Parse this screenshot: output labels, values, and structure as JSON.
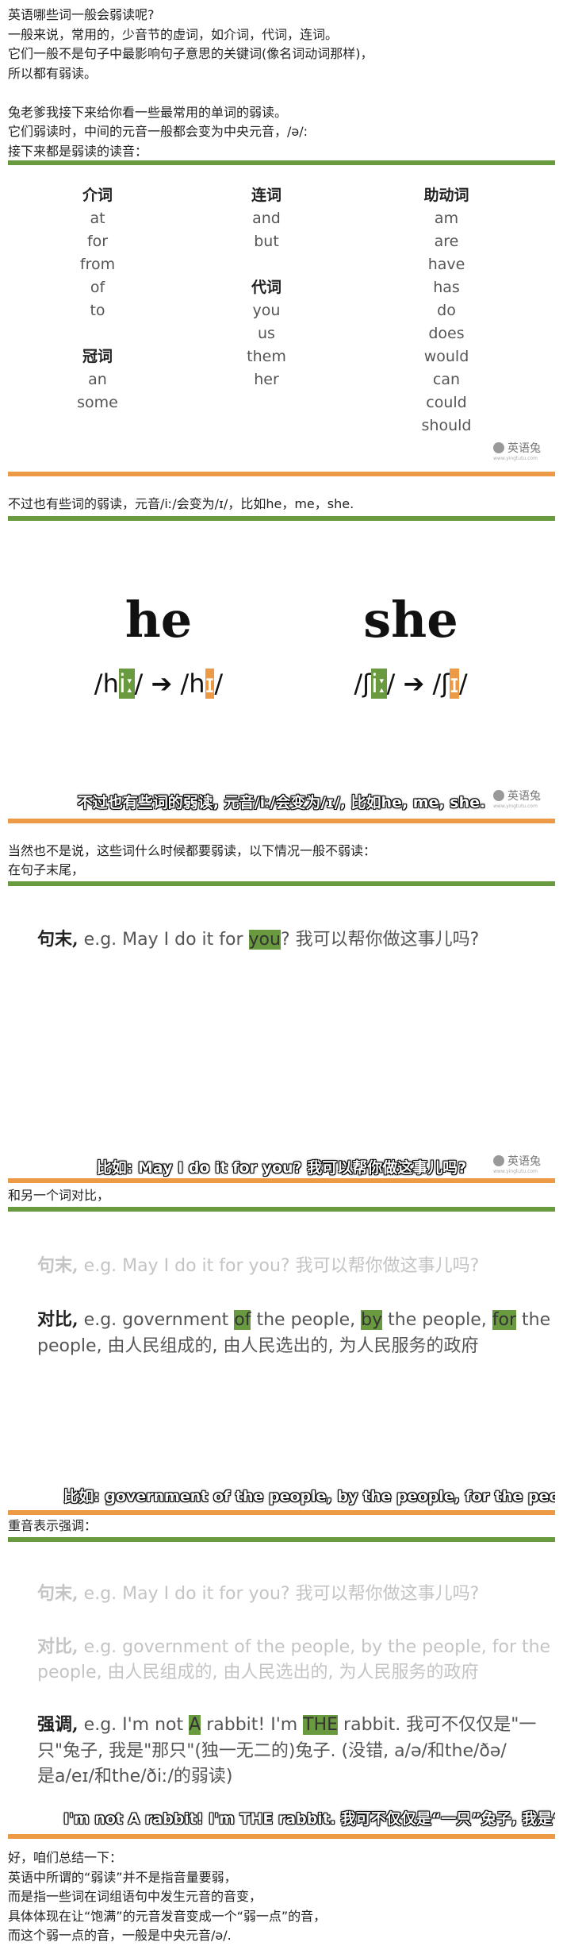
{
  "intro": [
    "英语哪些词一般会弱读呢?",
    "一般来说，常用的，少音节的虚词，如介词，代词，连词。",
    "它们一般不是句子中最影响句子意思的关键词(像名词动词那样)，",
    "所以都有弱读。",
    "兔老爹我接下来给你看一些最常用的单词的弱读。",
    "它们弱读时，中间的元音一般都会变为中央元音，/ə/:",
    "接下来都是弱读的读音："
  ],
  "logo": "英语兔",
  "logo_url": "www.yingtutu.com",
  "panel1": {
    "columns": [
      [
        {
          "heading": "介词",
          "words": [
            "at",
            "for",
            "from",
            "of",
            "to"
          ]
        },
        {
          "heading": "冠词",
          "words": [
            "an",
            "some"
          ]
        }
      ],
      [
        {
          "heading": "连词",
          "words": [
            "and",
            "but"
          ]
        },
        {
          "heading": "代词",
          "words": [
            "you",
            "us",
            "them",
            "her"
          ]
        }
      ],
      [
        {
          "heading": "助动词",
          "words": [
            "am",
            "are",
            "have",
            "has",
            "do",
            "does",
            "would",
            "can",
            "could",
            "should"
          ]
        }
      ]
    ]
  },
  "text2": "不过也有些词的弱读，元音/iː/会变为/ɪ/，比如he，me，she.",
  "panel2": {
    "words": [
      {
        "word": "he",
        "phonetic": [
          "/h",
          {
            "text": "iː",
            "style": "green"
          },
          "/ ➔ /h",
          {
            "text": "ɪ",
            "style": "orange"
          },
          "/"
        ]
      },
      {
        "word": "she",
        "phonetic": [
          "/ʃ",
          {
            "text": "iː",
            "style": "green"
          },
          "/ ➔ /ʃ",
          {
            "text": "ɪ",
            "style": "orange"
          },
          "/"
        ]
      }
    ],
    "subtitle": "不过也有些词的弱读, 元音/iː/会变为/ɪ/, 比如he, me, she."
  },
  "text3": [
    "当然也不是说，这些词什么时候都要弱读，以下情况一般不弱读：",
    "在句子末尾，"
  ],
  "panel3": {
    "lines": [
      [
        {
          "text": "句末,",
          "style": "label"
        },
        " e.g. May I do it for ",
        {
          "text": "you",
          "style": "green"
        },
        "? 我可以帮你做这事儿吗?"
      ]
    ],
    "subtitle": "比如: May I do it for you? 我可以帮你做这事儿吗?"
  },
  "text4": "和另一个词对比，",
  "panel4": {
    "faded": [
      [
        {
          "text": "句末,",
          "style": "label"
        },
        " e.g. May I do it for you? 我可以帮你做这事儿吗?"
      ]
    ],
    "lines": [
      [
        {
          "text": "对比,",
          "style": "label"
        },
        " e.g. government ",
        {
          "text": "of",
          "style": "green"
        },
        " the people, ",
        {
          "text": "by",
          "style": "green"
        },
        " the people, ",
        {
          "text": "for",
          "style": "green"
        },
        " the"
      ],
      [
        "people, 由人民组成的, 由人民选出的, 为人民服务的政府"
      ]
    ],
    "subtitle": "比如: government of the people, by the people, for the people, 由人民"
  },
  "text5": "重音表示强调：",
  "panel5": {
    "faded": [
      [
        {
          "text": "句末,",
          "style": "label"
        },
        " e.g. May I do it for you? 我可以帮你做这事儿吗?"
      ],
      [
        {
          "text": "对比,",
          "style": "label"
        },
        " e.g. government of the people, by the people, for the"
      ],
      [
        "people, 由人民组成的, 由人民选出的, 为人民服务的政府"
      ]
    ],
    "lines": [
      [
        {
          "text": "强调,",
          "style": "label"
        },
        " e.g. I'm not ",
        {
          "text": "A",
          "style": "green"
        },
        " rabbit! I'm ",
        {
          "text": "THE",
          "style": "green"
        },
        " rabbit. 我可不仅仅是\"一"
      ],
      [
        "只\"兔子, 我是\"那只\"(独一无二的)兔子. (没错, a/ə/和the/ðə/"
      ],
      [
        "是a/eɪ/和the/ðiː/的弱读)"
      ]
    ],
    "subtitle": "I'm not A rabbit! I'm THE rabbit. 我可不仅仅是“一只”兔子, 我是“那只”"
  },
  "summary": [
    "好，咱们总结一下：",
    "英语中所谓的“弱读”并不是指音量要弱，",
    "而是指一些词在词组语句中发生元音的音变，",
    "具体体现在让“饱满”的元音发音变成一个“弱一点”的音，",
    "而这个弱一点的音，一般是中央元音/ə/."
  ]
}
